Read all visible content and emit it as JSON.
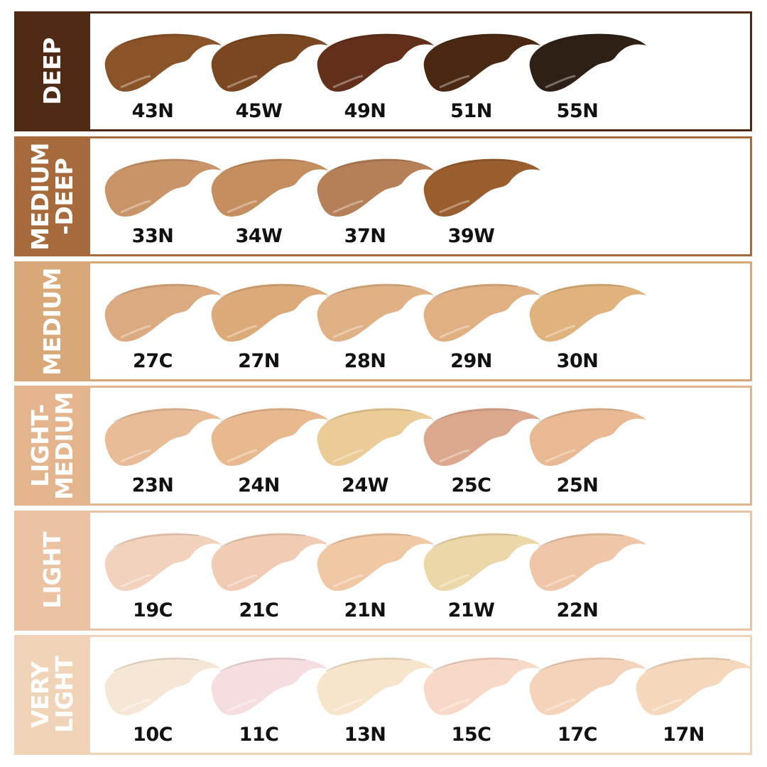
{
  "groups": [
    {
      "name": "DEEP",
      "color": "#4f2a15",
      "shades": [
        {
          "code": "43N",
          "color": "#8a5328"
        },
        {
          "code": "45W",
          "color": "#7a4720"
        },
        {
          "code": "49N",
          "color": "#62301a"
        },
        {
          "code": "51N",
          "color": "#4a2812"
        },
        {
          "code": "55N",
          "color": "#2f2016"
        }
      ]
    },
    {
      "name": "MEDIUM\n-DEEP",
      "color": "#a76a3c",
      "shades": [
        {
          "code": "33N",
          "color": "#c99467"
        },
        {
          "code": "34W",
          "color": "#c48e5f"
        },
        {
          "code": "37N",
          "color": "#b57f57"
        },
        {
          "code": "39W",
          "color": "#9a5e2e"
        }
      ]
    },
    {
      "name": "MEDIUM",
      "color": "#d9a878",
      "shades": [
        {
          "code": "27C",
          "color": "#dcaa80"
        },
        {
          "code": "27N",
          "color": "#dcaa78"
        },
        {
          "code": "28N",
          "color": "#dfb184"
        },
        {
          "code": "29N",
          "color": "#e0b082"
        },
        {
          "code": "30N",
          "color": "#e0b27c"
        }
      ]
    },
    {
      "name": "LIGHT-\nMEDIUM",
      "color": "#e4b48c",
      "shades": [
        {
          "code": "23N",
          "color": "#e9bc98"
        },
        {
          "code": "24N",
          "color": "#e8b98f"
        },
        {
          "code": "24W",
          "color": "#ebcb96"
        },
        {
          "code": "25C",
          "color": "#dba88e"
        },
        {
          "code": "25N",
          "color": "#e8b992"
        }
      ]
    },
    {
      "name": "LIGHT",
      "color": "#ebc2a2",
      "shades": [
        {
          "code": "19C",
          "color": "#f3d2bd"
        },
        {
          "code": "21C",
          "color": "#f1cbb3"
        },
        {
          "code": "21N",
          "color": "#f1c8a4"
        },
        {
          "code": "21W",
          "color": "#ecd7a8"
        },
        {
          "code": "22N",
          "color": "#efc6a8"
        }
      ]
    },
    {
      "name": "VERY\nLIGHT",
      "color": "#f1d3b8",
      "shades": [
        {
          "code": "10C",
          "color": "#f6e6d6"
        },
        {
          "code": "11C",
          "color": "#f6dde0"
        },
        {
          "code": "13N",
          "color": "#f7e5cb"
        },
        {
          "code": "15C",
          "color": "#f8d9c7"
        },
        {
          "code": "17C",
          "color": "#f5d3bb"
        },
        {
          "code": "17N",
          "color": "#f5d8bb"
        }
      ]
    }
  ]
}
